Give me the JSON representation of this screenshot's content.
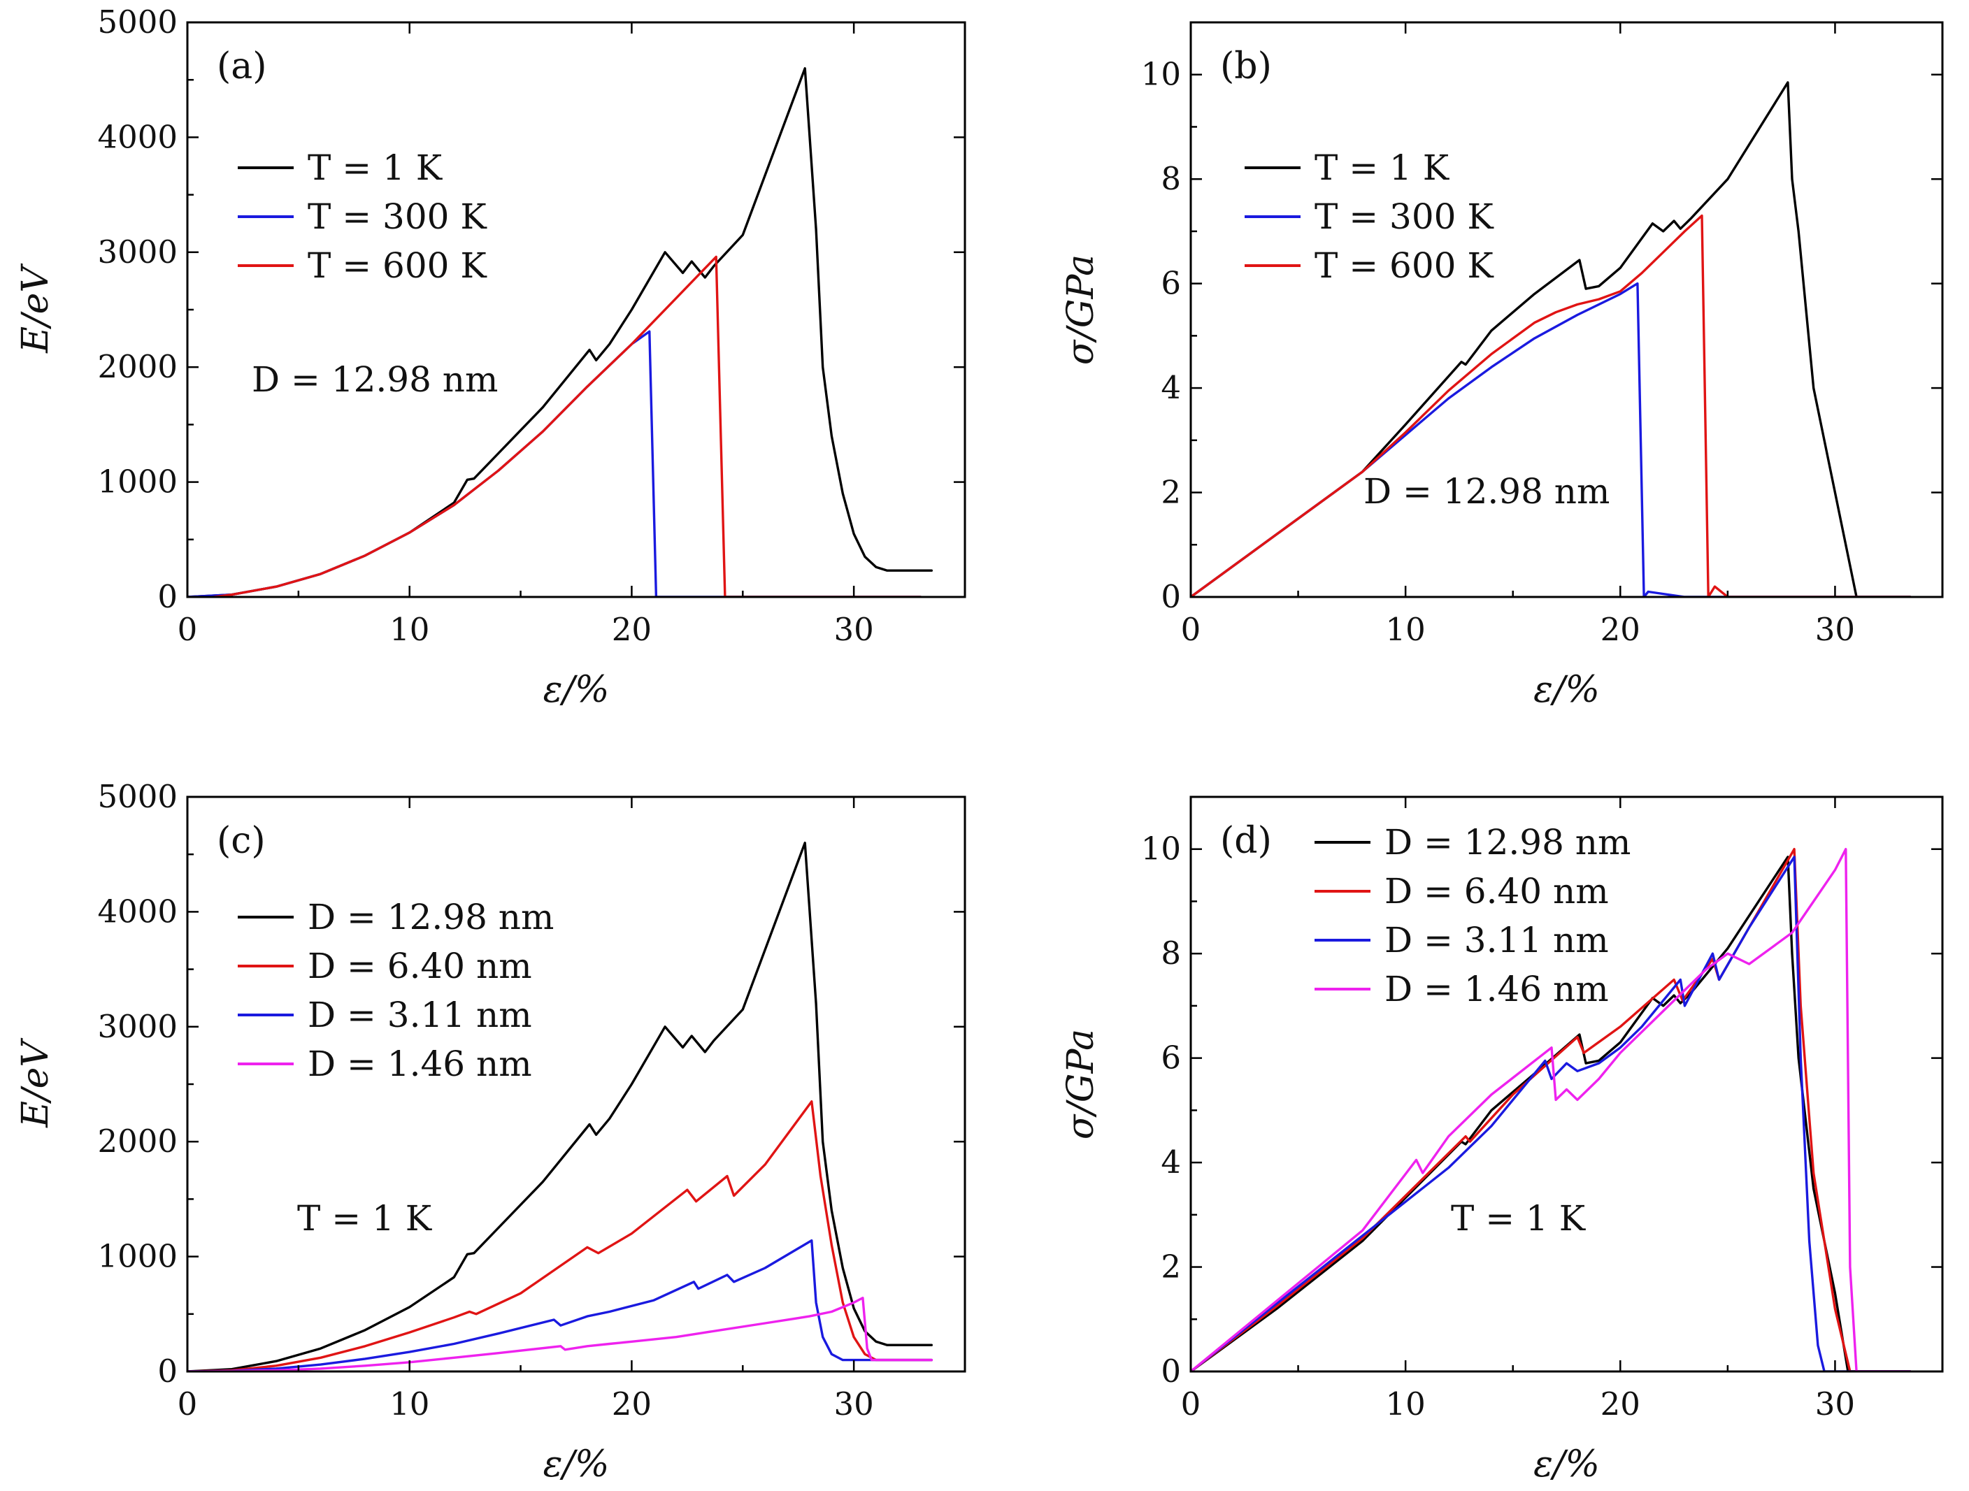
{
  "figure": {
    "colors": {
      "black": "#000000",
      "blue": "#1a1adf",
      "red": "#e01414",
      "magenta": "#ee22ee"
    }
  },
  "chart_data": [
    {
      "id": "a",
      "type": "line",
      "panel_label": "(a)",
      "xlabel": "ε/%",
      "ylabel": "E/eV",
      "xlim": [
        0,
        35
      ],
      "ylim": [
        0,
        5000
      ],
      "xticks": [
        0,
        10,
        20,
        30
      ],
      "yticks": [
        0,
        1000,
        2000,
        3000,
        4000,
        5000
      ],
      "xtick_labels": [
        "0",
        "10",
        "20",
        "30"
      ],
      "ytick_labels": [
        "0",
        "1000",
        "2000",
        "3000",
        "4000",
        "5000"
      ],
      "annotation": "D = 12.98 nm",
      "legend_position": "top-left",
      "series": [
        {
          "name": "T = 1 K",
          "color": "#000000",
          "x": [
            0,
            2,
            4,
            6,
            8,
            10,
            12,
            12.6,
            12.9,
            14,
            16,
            18.1,
            18.4,
            19,
            20,
            21.5,
            22.3,
            22.7,
            23.3,
            23.7,
            25,
            27.8,
            28.3,
            28.6,
            29,
            29.5,
            30,
            30.5,
            31,
            31.5,
            32,
            33.5
          ],
          "y": [
            0,
            20,
            90,
            200,
            360,
            560,
            820,
            1020,
            1030,
            1250,
            1650,
            2150,
            2060,
            2200,
            2500,
            3000,
            2820,
            2920,
            2780,
            2880,
            3150,
            4600,
            3200,
            2000,
            1400,
            900,
            550,
            350,
            260,
            230,
            230,
            230
          ]
        },
        {
          "name": "T = 300 K",
          "color": "#1a1adf",
          "x": [
            0,
            2,
            4,
            6,
            8,
            10,
            12,
            14,
            16,
            18,
            20,
            20.8,
            21.1,
            33
          ],
          "y": [
            0,
            20,
            90,
            200,
            360,
            560,
            800,
            1100,
            1440,
            1830,
            2200,
            2310,
            0,
            0
          ]
        },
        {
          "name": "T = 600 K",
          "color": "#e01414",
          "x": [
            0,
            2,
            4,
            6,
            8,
            10,
            12,
            14,
            16,
            18,
            20,
            21,
            22,
            23,
            23.8,
            24.2,
            33
          ],
          "y": [
            -30,
            20,
            90,
            200,
            360,
            560,
            800,
            1100,
            1440,
            1830,
            2200,
            2400,
            2600,
            2800,
            2960,
            0,
            0
          ]
        }
      ]
    },
    {
      "id": "b",
      "type": "line",
      "panel_label": "(b)",
      "xlabel": "ε/%",
      "ylabel": "σ/GPa",
      "xlim": [
        0,
        35
      ],
      "ylim": [
        0,
        11
      ],
      "xticks": [
        0,
        10,
        20,
        30
      ],
      "yticks": [
        0,
        2,
        4,
        6,
        8,
        10
      ],
      "xtick_labels": [
        "0",
        "10",
        "20",
        "30"
      ],
      "ytick_labels": [
        "0",
        "2",
        "4",
        "6",
        "8",
        "10"
      ],
      "annotation": "D = 12.98 nm",
      "legend_position": "top-left",
      "series": [
        {
          "name": "T = 1 K",
          "color": "#000000",
          "x": [
            0,
            4,
            8,
            10,
            12.6,
            12.8,
            14,
            16,
            18.1,
            18.4,
            19,
            20,
            21.5,
            22,
            22.5,
            22.8,
            23.3,
            25,
            27.8,
            28,
            28.3,
            29,
            30,
            31,
            33.5
          ],
          "y": [
            0,
            1.2,
            2.4,
            3.3,
            4.5,
            4.45,
            5.1,
            5.8,
            6.45,
            5.9,
            5.95,
            6.3,
            7.15,
            7.0,
            7.2,
            7.05,
            7.25,
            8.0,
            9.85,
            8.0,
            7.0,
            4.0,
            2.0,
            0,
            0
          ]
        },
        {
          "name": "T = 300 K",
          "color": "#1a1adf",
          "x": [
            0,
            4,
            8,
            10,
            12,
            14,
            16,
            18,
            20,
            20.8,
            21.1,
            21.3,
            23,
            33.5
          ],
          "y": [
            0,
            1.2,
            2.4,
            3.1,
            3.8,
            4.4,
            4.95,
            5.4,
            5.8,
            6.0,
            0,
            0.1,
            0,
            0
          ]
        },
        {
          "name": "T = 600 K",
          "color": "#e01414",
          "x": [
            0,
            4,
            8,
            10,
            12,
            14,
            16,
            17,
            18,
            19,
            20,
            21,
            22,
            23,
            23.8,
            24.1,
            24.4,
            25,
            33.5
          ],
          "y": [
            0,
            1.2,
            2.4,
            3.15,
            3.95,
            4.65,
            5.25,
            5.45,
            5.6,
            5.7,
            5.85,
            6.2,
            6.6,
            7.0,
            7.3,
            0,
            0.2,
            0,
            0
          ]
        }
      ]
    },
    {
      "id": "c",
      "type": "line",
      "panel_label": "(c)",
      "xlabel": "ε/%",
      "ylabel": "E/eV",
      "xlim": [
        0,
        35
      ],
      "ylim": [
        0,
        5000
      ],
      "xticks": [
        0,
        10,
        20,
        30
      ],
      "yticks": [
        0,
        1000,
        2000,
        3000,
        4000,
        5000
      ],
      "xtick_labels": [
        "0",
        "10",
        "20",
        "30"
      ],
      "ytick_labels": [
        "0",
        "1000",
        "2000",
        "3000",
        "4000",
        "5000"
      ],
      "annotation": "T = 1 K",
      "legend_position": "top-left",
      "series": [
        {
          "name": "D = 12.98 nm",
          "color": "#000000",
          "x": [
            0,
            2,
            4,
            6,
            8,
            10,
            12,
            12.6,
            12.9,
            14,
            16,
            18.1,
            18.4,
            19,
            20,
            21.5,
            22.3,
            22.7,
            23.3,
            23.7,
            25,
            27.8,
            28.3,
            28.6,
            29,
            29.5,
            30,
            30.5,
            31,
            31.5,
            32,
            33.5
          ],
          "y": [
            0,
            20,
            90,
            200,
            360,
            560,
            820,
            1020,
            1030,
            1250,
            1650,
            2150,
            2060,
            2200,
            2500,
            3000,
            2820,
            2920,
            2780,
            2880,
            3150,
            4600,
            3200,
            2000,
            1400,
            900,
            550,
            350,
            260,
            230,
            230,
            230
          ]
        },
        {
          "name": "D = 6.40 nm",
          "color": "#e01414",
          "x": [
            0,
            2,
            4,
            6,
            8,
            10,
            12,
            12.7,
            13,
            15,
            18,
            18.5,
            20,
            22.5,
            22.9,
            24.3,
            24.6,
            26,
            28.1,
            28.5,
            29,
            29.5,
            30,
            30.5,
            31,
            33.5
          ],
          "y": [
            0,
            10,
            50,
            120,
            220,
            340,
            470,
            520,
            500,
            680,
            1080,
            1030,
            1200,
            1580,
            1480,
            1700,
            1530,
            1800,
            2350,
            1700,
            1100,
            600,
            300,
            150,
            100,
            100
          ]
        },
        {
          "name": "D = 3.11 nm",
          "color": "#1a1adf",
          "x": [
            0,
            2,
            4,
            6,
            8,
            10,
            12,
            14,
            16.5,
            16.8,
            18,
            19,
            21,
            22.8,
            23,
            24.3,
            24.6,
            26,
            28.1,
            28.3,
            28.6,
            29,
            29.5,
            30,
            33.5
          ],
          "y": [
            0,
            5,
            25,
            60,
            110,
            170,
            240,
            330,
            450,
            400,
            480,
            520,
            620,
            780,
            720,
            840,
            780,
            900,
            1140,
            600,
            300,
            150,
            100,
            100,
            100
          ]
        },
        {
          "name": "D = 1.46 nm",
          "color": "#ee22ee",
          "x": [
            0,
            2,
            4,
            6,
            8,
            10,
            12,
            14,
            16.8,
            17,
            18,
            19,
            20,
            22,
            24,
            26,
            28,
            29,
            30,
            30.4,
            30.6,
            30.8,
            31,
            33.5
          ],
          "y": [
            0,
            3,
            10,
            25,
            50,
            80,
            120,
            160,
            220,
            190,
            220,
            240,
            260,
            300,
            360,
            420,
            480,
            520,
            600,
            640,
            200,
            100,
            100,
            100
          ]
        }
      ]
    },
    {
      "id": "d",
      "type": "line",
      "panel_label": "(d)",
      "xlabel": "ε/%",
      "ylabel": "σ/GPa",
      "xlim": [
        0,
        35
      ],
      "ylim": [
        0,
        11
      ],
      "xticks": [
        0,
        10,
        20,
        30
      ],
      "yticks": [
        0,
        2,
        4,
        6,
        8,
        10
      ],
      "xtick_labels": [
        "0",
        "10",
        "20",
        "30"
      ],
      "ytick_labels": [
        "0",
        "2",
        "4",
        "6",
        "8",
        "10"
      ],
      "annotation": "T = 1 K",
      "legend_position": "top-left",
      "series": [
        {
          "name": "D = 12.98 nm",
          "color": "#000000",
          "x": [
            0,
            4,
            8,
            12.6,
            12.8,
            14,
            16,
            18.1,
            18.4,
            19,
            20,
            21.5,
            22,
            22.5,
            22.8,
            23.3,
            25,
            27.8,
            28,
            28.3,
            29,
            30,
            30.6,
            31,
            33.5
          ],
          "y": [
            0,
            1.2,
            2.5,
            4.4,
            4.35,
            5.0,
            5.7,
            6.45,
            5.9,
            5.95,
            6.3,
            7.15,
            7.0,
            7.2,
            7.05,
            7.25,
            8.1,
            9.85,
            8.0,
            6.0,
            3.5,
            1.5,
            0,
            0,
            0
          ]
        },
        {
          "name": "D = 6.40 nm",
          "color": "#e01414",
          "x": [
            0,
            4,
            8,
            12.8,
            13,
            15,
            18,
            18.3,
            20,
            22.5,
            22.9,
            24.3,
            24.6,
            26,
            28.1,
            28.4,
            29,
            30,
            30.7,
            33.5
          ],
          "y": [
            0,
            1.25,
            2.55,
            4.5,
            4.4,
            5.3,
            6.4,
            6.1,
            6.6,
            7.5,
            7.1,
            7.9,
            7.5,
            8.5,
            10.0,
            7.0,
            3.8,
            1.2,
            0,
            0
          ]
        },
        {
          "name": "D = 3.11 nm",
          "color": "#1a1adf",
          "x": [
            0,
            4,
            8,
            12,
            14,
            16.5,
            16.8,
            17.5,
            18,
            19,
            20,
            21,
            22.8,
            23,
            24.3,
            24.6,
            26,
            28.1,
            28.4,
            28.8,
            29.2,
            29.5,
            33.5
          ],
          "y": [
            0,
            1.3,
            2.6,
            3.9,
            4.7,
            5.95,
            5.6,
            5.9,
            5.75,
            5.9,
            6.2,
            6.6,
            7.5,
            7.0,
            8.0,
            7.5,
            8.5,
            9.85,
            6.0,
            2.5,
            0.5,
            0,
            0
          ]
        },
        {
          "name": "D = 1.46 nm",
          "color": "#ee22ee",
          "x": [
            0,
            4,
            8,
            10.5,
            10.8,
            12,
            14,
            16.8,
            17,
            17.5,
            18,
            19,
            20,
            21,
            22,
            23,
            24,
            25,
            26,
            27,
            28,
            29,
            30,
            30.5,
            30.7,
            31,
            33.5
          ],
          "y": [
            0,
            1.35,
            2.7,
            4.05,
            3.8,
            4.5,
            5.3,
            6.2,
            5.2,
            5.4,
            5.2,
            5.6,
            6.1,
            6.5,
            6.9,
            7.3,
            7.7,
            8.0,
            7.8,
            8.1,
            8.4,
            9.0,
            9.6,
            10.0,
            2.0,
            0,
            0
          ]
        }
      ]
    }
  ]
}
